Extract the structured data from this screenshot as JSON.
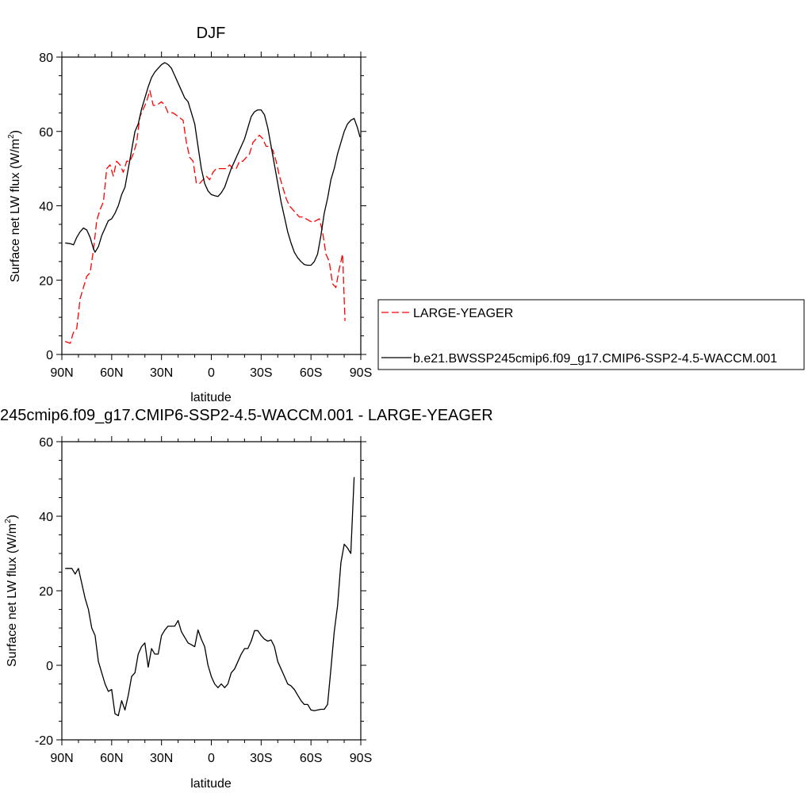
{
  "chart_data": [
    {
      "type": "line",
      "title": "DJF",
      "xlabel": "latitude",
      "ylabel": "Surface net LW flux (W/m",
      "ylabel_sup": "2",
      "ylabel_close": ")",
      "xlim": [
        90,
        -90
      ],
      "ylim": [
        0,
        80
      ],
      "xticks": [
        90,
        60,
        30,
        0,
        -30,
        -60,
        -90
      ],
      "xtick_labels": [
        "90N",
        "60N",
        "30N",
        "0",
        "30S",
        "60S",
        "90S"
      ],
      "yticks": [
        0,
        20,
        40,
        60,
        80
      ],
      "ytick_labels": [
        "0",
        "20",
        "40",
        "60",
        "80"
      ],
      "grid": false,
      "legend_position": "right, outside plot",
      "series": [
        {
          "name": "LARGE-YEAGER",
          "color": "#ff0000",
          "dash": "dashed",
          "points": [
            [
              88,
              3.5
            ],
            [
              85,
              3
            ],
            [
              83,
              6
            ],
            [
              81,
              7
            ],
            [
              79,
              15
            ],
            [
              77,
              18
            ],
            [
              75,
              21
            ],
            [
              73,
              22
            ],
            [
              71,
              28
            ],
            [
              69,
              36
            ],
            [
              67,
              39
            ],
            [
              65,
              41
            ],
            [
              63,
              50
            ],
            [
              61,
              51
            ],
            [
              59,
              48
            ],
            [
              57,
              52
            ],
            [
              55,
              51
            ],
            [
              53,
              49
            ],
            [
              51,
              52
            ],
            [
              49,
              52
            ],
            [
              47,
              54
            ],
            [
              45,
              57
            ],
            [
              43,
              64
            ],
            [
              41,
              66
            ],
            [
              39,
              68
            ],
            [
              37,
              71
            ],
            [
              35,
              67
            ],
            [
              33,
              67
            ],
            [
              30,
              68
            ],
            [
              28,
              67
            ],
            [
              26,
              65
            ],
            [
              23,
              65
            ],
            [
              20,
              64
            ],
            [
              17,
              63
            ],
            [
              15,
              57
            ],
            [
              13,
              53
            ],
            [
              11,
              52
            ],
            [
              9,
              46
            ],
            [
              7,
              46
            ],
            [
              5,
              47
            ],
            [
              3,
              48
            ],
            [
              1,
              47
            ],
            [
              -1,
              49
            ],
            [
              -3,
              50
            ],
            [
              -5,
              50
            ],
            [
              -7,
              50
            ],
            [
              -9,
              50
            ],
            [
              -11,
              51
            ],
            [
              -13,
              50
            ],
            [
              -15,
              50
            ],
            [
              -17,
              52
            ],
            [
              -19,
              52
            ],
            [
              -21,
              53
            ],
            [
              -23,
              54
            ],
            [
              -25,
              57
            ],
            [
              -27,
              58
            ],
            [
              -29,
              59
            ],
            [
              -31,
              58
            ],
            [
              -33,
              56
            ],
            [
              -35,
              56
            ],
            [
              -37,
              55
            ],
            [
              -39,
              52
            ],
            [
              -41,
              48
            ],
            [
              -43,
              45
            ],
            [
              -45,
              42
            ],
            [
              -47,
              40
            ],
            [
              -49,
              39
            ],
            [
              -51,
              38
            ],
            [
              -53,
              37
            ],
            [
              -55,
              37
            ],
            [
              -57,
              36.5
            ],
            [
              -59,
              36
            ],
            [
              -61,
              35.5
            ],
            [
              -63,
              36
            ],
            [
              -65,
              36.5
            ],
            [
              -67,
              33
            ],
            [
              -69,
              27
            ],
            [
              -71,
              25
            ],
            [
              -73,
              19
            ],
            [
              -75,
              18
            ],
            [
              -77,
              23
            ],
            [
              -79,
              27
            ],
            [
              -80.5,
              9
            ]
          ]
        },
        {
          "name": "b.e21.BWSSP245cmip6.f09_g17.CMIP6-SSP2-4.5-WACCM.001",
          "color": "#000000",
          "dash": "solid",
          "points": [
            [
              88,
              30
            ],
            [
              85,
              29.8
            ],
            [
              83,
              29.5
            ],
            [
              81,
              31.5
            ],
            [
              79,
              33
            ],
            [
              77,
              34
            ],
            [
              75,
              33.5
            ],
            [
              73,
              31.5
            ],
            [
              71,
              28.5
            ],
            [
              70,
              27.5
            ],
            [
              68,
              29
            ],
            [
              66,
              32
            ],
            [
              64,
              34
            ],
            [
              62,
              36
            ],
            [
              60,
              36.5
            ],
            [
              58,
              38
            ],
            [
              56,
              40
            ],
            [
              54,
              43
            ],
            [
              52,
              45
            ],
            [
              50,
              50
            ],
            [
              48,
              55
            ],
            [
              46,
              60
            ],
            [
              44,
              62
            ],
            [
              42,
              66
            ],
            [
              40,
              69
            ],
            [
              38,
              72
            ],
            [
              36,
              74.5
            ],
            [
              34,
              76
            ],
            [
              32,
              77
            ],
            [
              30,
              78
            ],
            [
              28,
              78.5
            ],
            [
              26,
              78
            ],
            [
              24,
              77
            ],
            [
              22,
              75
            ],
            [
              20,
              73
            ],
            [
              18,
              71
            ],
            [
              16,
              69
            ],
            [
              14,
              68
            ],
            [
              12,
              65
            ],
            [
              10,
              62
            ],
            [
              8,
              56
            ],
            [
              6,
              50
            ],
            [
              4,
              46
            ],
            [
              2,
              44
            ],
            [
              0,
              43
            ],
            [
              -2,
              42.7
            ],
            [
              -4,
              42.5
            ],
            [
              -6,
              43.5
            ],
            [
              -8,
              45
            ],
            [
              -10,
              47.5
            ],
            [
              -12,
              50
            ],
            [
              -14,
              52
            ],
            [
              -16,
              54
            ],
            [
              -18,
              56
            ],
            [
              -20,
              58
            ],
            [
              -22,
              61
            ],
            [
              -24,
              64
            ],
            [
              -26,
              65.3
            ],
            [
              -28,
              65.8
            ],
            [
              -30,
              65.8
            ],
            [
              -32,
              64.5
            ],
            [
              -34,
              61
            ],
            [
              -36,
              56
            ],
            [
              -38,
              51
            ],
            [
              -40,
              46
            ],
            [
              -42,
              41
            ],
            [
              -44,
              37
            ],
            [
              -46,
              33
            ],
            [
              -48,
              30
            ],
            [
              -50,
              27.5
            ],
            [
              -52,
              26
            ],
            [
              -54,
              25
            ],
            [
              -56,
              24.2
            ],
            [
              -58,
              24
            ],
            [
              -60,
              24
            ],
            [
              -62,
              25
            ],
            [
              -64,
              27
            ],
            [
              -66,
              32
            ],
            [
              -68,
              38
            ],
            [
              -70,
              42
            ],
            [
              -72,
              47
            ],
            [
              -74,
              50
            ],
            [
              -76,
              54
            ],
            [
              -78,
              57
            ],
            [
              -80,
              60
            ],
            [
              -82,
              62
            ],
            [
              -84,
              63
            ],
            [
              -86,
              63.5
            ],
            [
              -88,
              61
            ],
            [
              -89.5,
              58.5
            ]
          ]
        }
      ]
    },
    {
      "type": "line",
      "title": "245cmip6.f09_g17.CMIP6-SSP2-4.5-WACCM.001 - LARGE-YEAGER",
      "xlabel": "latitude",
      "ylabel": "Surface net LW flux (W/m",
      "ylabel_sup": "2",
      "ylabel_close": ")",
      "xlim": [
        90,
        -90
      ],
      "ylim": [
        -20,
        60
      ],
      "xticks": [
        90,
        60,
        30,
        0,
        -30,
        -60,
        -90
      ],
      "xtick_labels": [
        "90N",
        "60N",
        "30N",
        "0",
        "30S",
        "60S",
        "90S"
      ],
      "yticks": [
        -20,
        0,
        20,
        40,
        60
      ],
      "ytick_labels": [
        "-20",
        "0",
        "20",
        "40",
        "60"
      ],
      "grid": false,
      "series": [
        {
          "color": "#000000",
          "dash": "solid",
          "points": [
            [
              88,
              26
            ],
            [
              86,
              26
            ],
            [
              84,
              26
            ],
            [
              82,
              24.5
            ],
            [
              80,
              26
            ],
            [
              78,
              22
            ],
            [
              76,
              18
            ],
            [
              74,
              15
            ],
            [
              72,
              10
            ],
            [
              70,
              8
            ],
            [
              68,
              1
            ],
            [
              66,
              -2
            ],
            [
              64,
              -5
            ],
            [
              62,
              -7
            ],
            [
              60,
              -6.5
            ],
            [
              58,
              -13
            ],
            [
              56,
              -13.5
            ],
            [
              54,
              -9.5
            ],
            [
              52,
              -12
            ],
            [
              50,
              -8
            ],
            [
              48,
              -3
            ],
            [
              46,
              -2
            ],
            [
              44,
              3
            ],
            [
              42,
              5
            ],
            [
              40,
              6
            ],
            [
              38,
              -0.5
            ],
            [
              36,
              4.5
            ],
            [
              34,
              3
            ],
            [
              32,
              3
            ],
            [
              30,
              8
            ],
            [
              28,
              9.5
            ],
            [
              26,
              10.5
            ],
            [
              24,
              10.5
            ],
            [
              22,
              10.5
            ],
            [
              20,
              12
            ],
            [
              18,
              9
            ],
            [
              16,
              7.5
            ],
            [
              14,
              6
            ],
            [
              12,
              5.5
            ],
            [
              10,
              5
            ],
            [
              8,
              9.5
            ],
            [
              6,
              7
            ],
            [
              4,
              5
            ],
            [
              2,
              0
            ],
            [
              0,
              -3
            ],
            [
              -2,
              -5
            ],
            [
              -4,
              -6
            ],
            [
              -6,
              -5
            ],
            [
              -8,
              -6
            ],
            [
              -10,
              -5
            ],
            [
              -12,
              -2
            ],
            [
              -14,
              -1
            ],
            [
              -16,
              1
            ],
            [
              -18,
              3
            ],
            [
              -20,
              4.5
            ],
            [
              -22,
              4.5
            ],
            [
              -24,
              6.5
            ],
            [
              -26,
              9.3
            ],
            [
              -28,
              9.3
            ],
            [
              -30,
              8
            ],
            [
              -32,
              7
            ],
            [
              -34,
              6.5
            ],
            [
              -36,
              6.8
            ],
            [
              -38,
              5
            ],
            [
              -40,
              1
            ],
            [
              -42,
              -1
            ],
            [
              -44,
              -3
            ],
            [
              -46,
              -5
            ],
            [
              -48,
              -5.5
            ],
            [
              -50,
              -6.5
            ],
            [
              -52,
              -8
            ],
            [
              -54,
              -9.5
            ],
            [
              -56,
              -10.5
            ],
            [
              -58,
              -10.5
            ],
            [
              -60,
              -12
            ],
            [
              -62,
              -12.2
            ],
            [
              -64,
              -12
            ],
            [
              -66,
              -11.8
            ],
            [
              -68,
              -11.8
            ],
            [
              -70,
              -10.5
            ],
            [
              -72,
              -1
            ],
            [
              -74,
              9
            ],
            [
              -76,
              16
            ],
            [
              -78,
              27.5
            ],
            [
              -80,
              32.5
            ],
            [
              -82,
              31.5
            ],
            [
              -84,
              30
            ],
            [
              -86,
              50.5
            ]
          ]
        }
      ]
    }
  ]
}
